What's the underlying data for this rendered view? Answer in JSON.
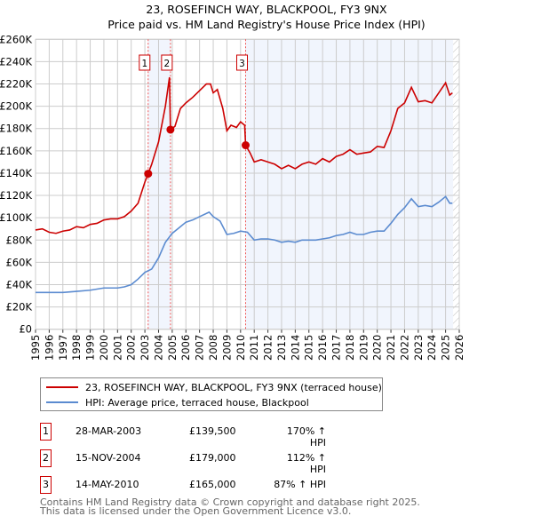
{
  "title": "23, ROSEFINCH WAY, BLACKPOOL, FY3 9NX",
  "subtitle": "Price paid vs. HM Land Registry's House Price Index (HPI)",
  "chart_data": {
    "type": "line",
    "ylim": [
      0,
      260000
    ],
    "xlim": [
      1995,
      2026
    ],
    "yticks": [
      {
        "v": 0,
        "label": "£0"
      },
      {
        "v": 20000,
        "label": "£20K"
      },
      {
        "v": 40000,
        "label": "£40K"
      },
      {
        "v": 60000,
        "label": "£60K"
      },
      {
        "v": 80000,
        "label": "£80K"
      },
      {
        "v": 100000,
        "label": "£100K"
      },
      {
        "v": 120000,
        "label": "£120K"
      },
      {
        "v": 140000,
        "label": "£140K"
      },
      {
        "v": 160000,
        "label": "£160K"
      },
      {
        "v": 180000,
        "label": "£180K"
      },
      {
        "v": 200000,
        "label": "£200K"
      },
      {
        "v": 220000,
        "label": "£220K"
      },
      {
        "v": 240000,
        "label": "£240K"
      },
      {
        "v": 260000,
        "label": "£260K"
      }
    ],
    "xticks": [
      "1995",
      "1996",
      "1997",
      "1998",
      "1999",
      "2000",
      "2001",
      "2002",
      "2003",
      "2004",
      "2005",
      "2006",
      "2007",
      "2008",
      "2009",
      "2010",
      "2011",
      "2012",
      "2013",
      "2014",
      "2015",
      "2016",
      "2017",
      "2018",
      "2019",
      "2020",
      "2021",
      "2022",
      "2023",
      "2024",
      "2025",
      "2026"
    ],
    "series": [
      {
        "name": "23, ROSEFINCH WAY, BLACKPOOL, FY3 9NX (terraced house)",
        "color": "#cc0000",
        "x": [
          1995,
          1995.5,
          1996,
          1996.5,
          1997,
          1997.5,
          1998,
          1998.5,
          1999,
          1999.5,
          2000,
          2000.5,
          2001,
          2001.5,
          2002,
          2002.5,
          2003,
          2003.24,
          2003.5,
          2004,
          2004.5,
          2004.8,
          2004.87,
          2005.2,
          2005.6,
          2006,
          2006.5,
          2007,
          2007.5,
          2007.8,
          2008,
          2008.3,
          2008.7,
          2009,
          2009.3,
          2009.7,
          2010,
          2010.3,
          2010.37,
          2010.7,
          2011,
          2011.5,
          2012,
          2012.5,
          2013,
          2013.5,
          2014,
          2014.5,
          2015,
          2015.5,
          2016,
          2016.5,
          2017,
          2017.5,
          2018,
          2018.5,
          2019,
          2019.5,
          2020,
          2020.5,
          2021,
          2021.5,
          2022,
          2022.5,
          2023,
          2023.5,
          2024,
          2024.5,
          2025,
          2025.3,
          2025.5
        ],
        "y": [
          89000,
          90000,
          87000,
          86000,
          88000,
          89000,
          92000,
          91000,
          94000,
          95000,
          98000,
          99000,
          99000,
          101000,
          106000,
          113000,
          132000,
          139500,
          148000,
          168000,
          200000,
          226000,
          179000,
          182000,
          198000,
          203000,
          208000,
          214000,
          220000,
          220000,
          212000,
          215000,
          198000,
          178000,
          183000,
          181000,
          186000,
          183000,
          165000,
          158000,
          150000,
          152000,
          150000,
          148000,
          144000,
          147000,
          144000,
          148000,
          150000,
          148000,
          153000,
          150000,
          155000,
          157000,
          161000,
          157000,
          158000,
          159000,
          164000,
          163000,
          178000,
          198000,
          203000,
          217000,
          204000,
          205000,
          203000,
          212000,
          221000,
          210000,
          212000
        ]
      },
      {
        "name": "HPI: Average price, terraced house, Blackpool",
        "color": "#5b8bd0",
        "x": [
          1995,
          1996,
          1997,
          1998,
          1999,
          2000,
          2001,
          2001.5,
          2002,
          2002.5,
          2003,
          2003.5,
          2004,
          2004.5,
          2005,
          2005.5,
          2006,
          2006.5,
          2007,
          2007.7,
          2008,
          2008.5,
          2009,
          2009.5,
          2010,
          2010.5,
          2011,
          2011.5,
          2012,
          2012.5,
          2013,
          2013.5,
          2014,
          2014.5,
          2015,
          2015.5,
          2016,
          2016.5,
          2017,
          2017.5,
          2018,
          2018.5,
          2019,
          2019.5,
          2020,
          2020.5,
          2021,
          2021.5,
          2022,
          2022.5,
          2023,
          2023.5,
          2024,
          2024.5,
          2025,
          2025.3,
          2025.5
        ],
        "y": [
          33000,
          33000,
          33000,
          34000,
          35000,
          37000,
          37000,
          38000,
          40000,
          45000,
          51000,
          54000,
          64000,
          78000,
          86000,
          91000,
          96000,
          98000,
          101000,
          105000,
          101000,
          97000,
          85000,
          86000,
          88000,
          87000,
          80000,
          81000,
          81000,
          80000,
          78000,
          79000,
          78000,
          80000,
          80000,
          80000,
          81000,
          82000,
          84000,
          85000,
          87000,
          85000,
          85000,
          87000,
          88000,
          88000,
          95000,
          103000,
          109000,
          117000,
          110000,
          111000,
          110000,
          114000,
          119000,
          113000,
          113000
        ]
      }
    ],
    "sales": [
      {
        "id": "1",
        "x": 2003.24,
        "y": 139500
      },
      {
        "id": "2",
        "x": 2004.87,
        "y": 179000
      },
      {
        "id": "3",
        "x": 2010.37,
        "y": 165000
      }
    ],
    "shaded_ranges": [
      [
        2003.24,
        2004.87
      ],
      [
        2010.37,
        2025.55
      ]
    ],
    "hatched_from": 2025.55
  },
  "legend": {
    "items": [
      {
        "label": "23, ROSEFINCH WAY, BLACKPOOL, FY3 9NX (terraced house)",
        "color": "#cc0000"
      },
      {
        "label": "HPI: Average price, terraced house, Blackpool",
        "color": "#5b8bd0"
      }
    ]
  },
  "table": [
    {
      "id": "1",
      "date": "28-MAR-2003",
      "price": "£139,500",
      "hpi": "170% ↑ HPI"
    },
    {
      "id": "2",
      "date": "15-NOV-2004",
      "price": "£179,000",
      "hpi": "112% ↑ HPI"
    },
    {
      "id": "3",
      "date": "14-MAY-2010",
      "price": "£165,000",
      "hpi": "87% ↑ HPI"
    }
  ],
  "footer": {
    "line1": "Contains HM Land Registry data © Crown copyright and database right 2025.",
    "line2": "This data is licensed under the Open Government Licence v3.0."
  }
}
